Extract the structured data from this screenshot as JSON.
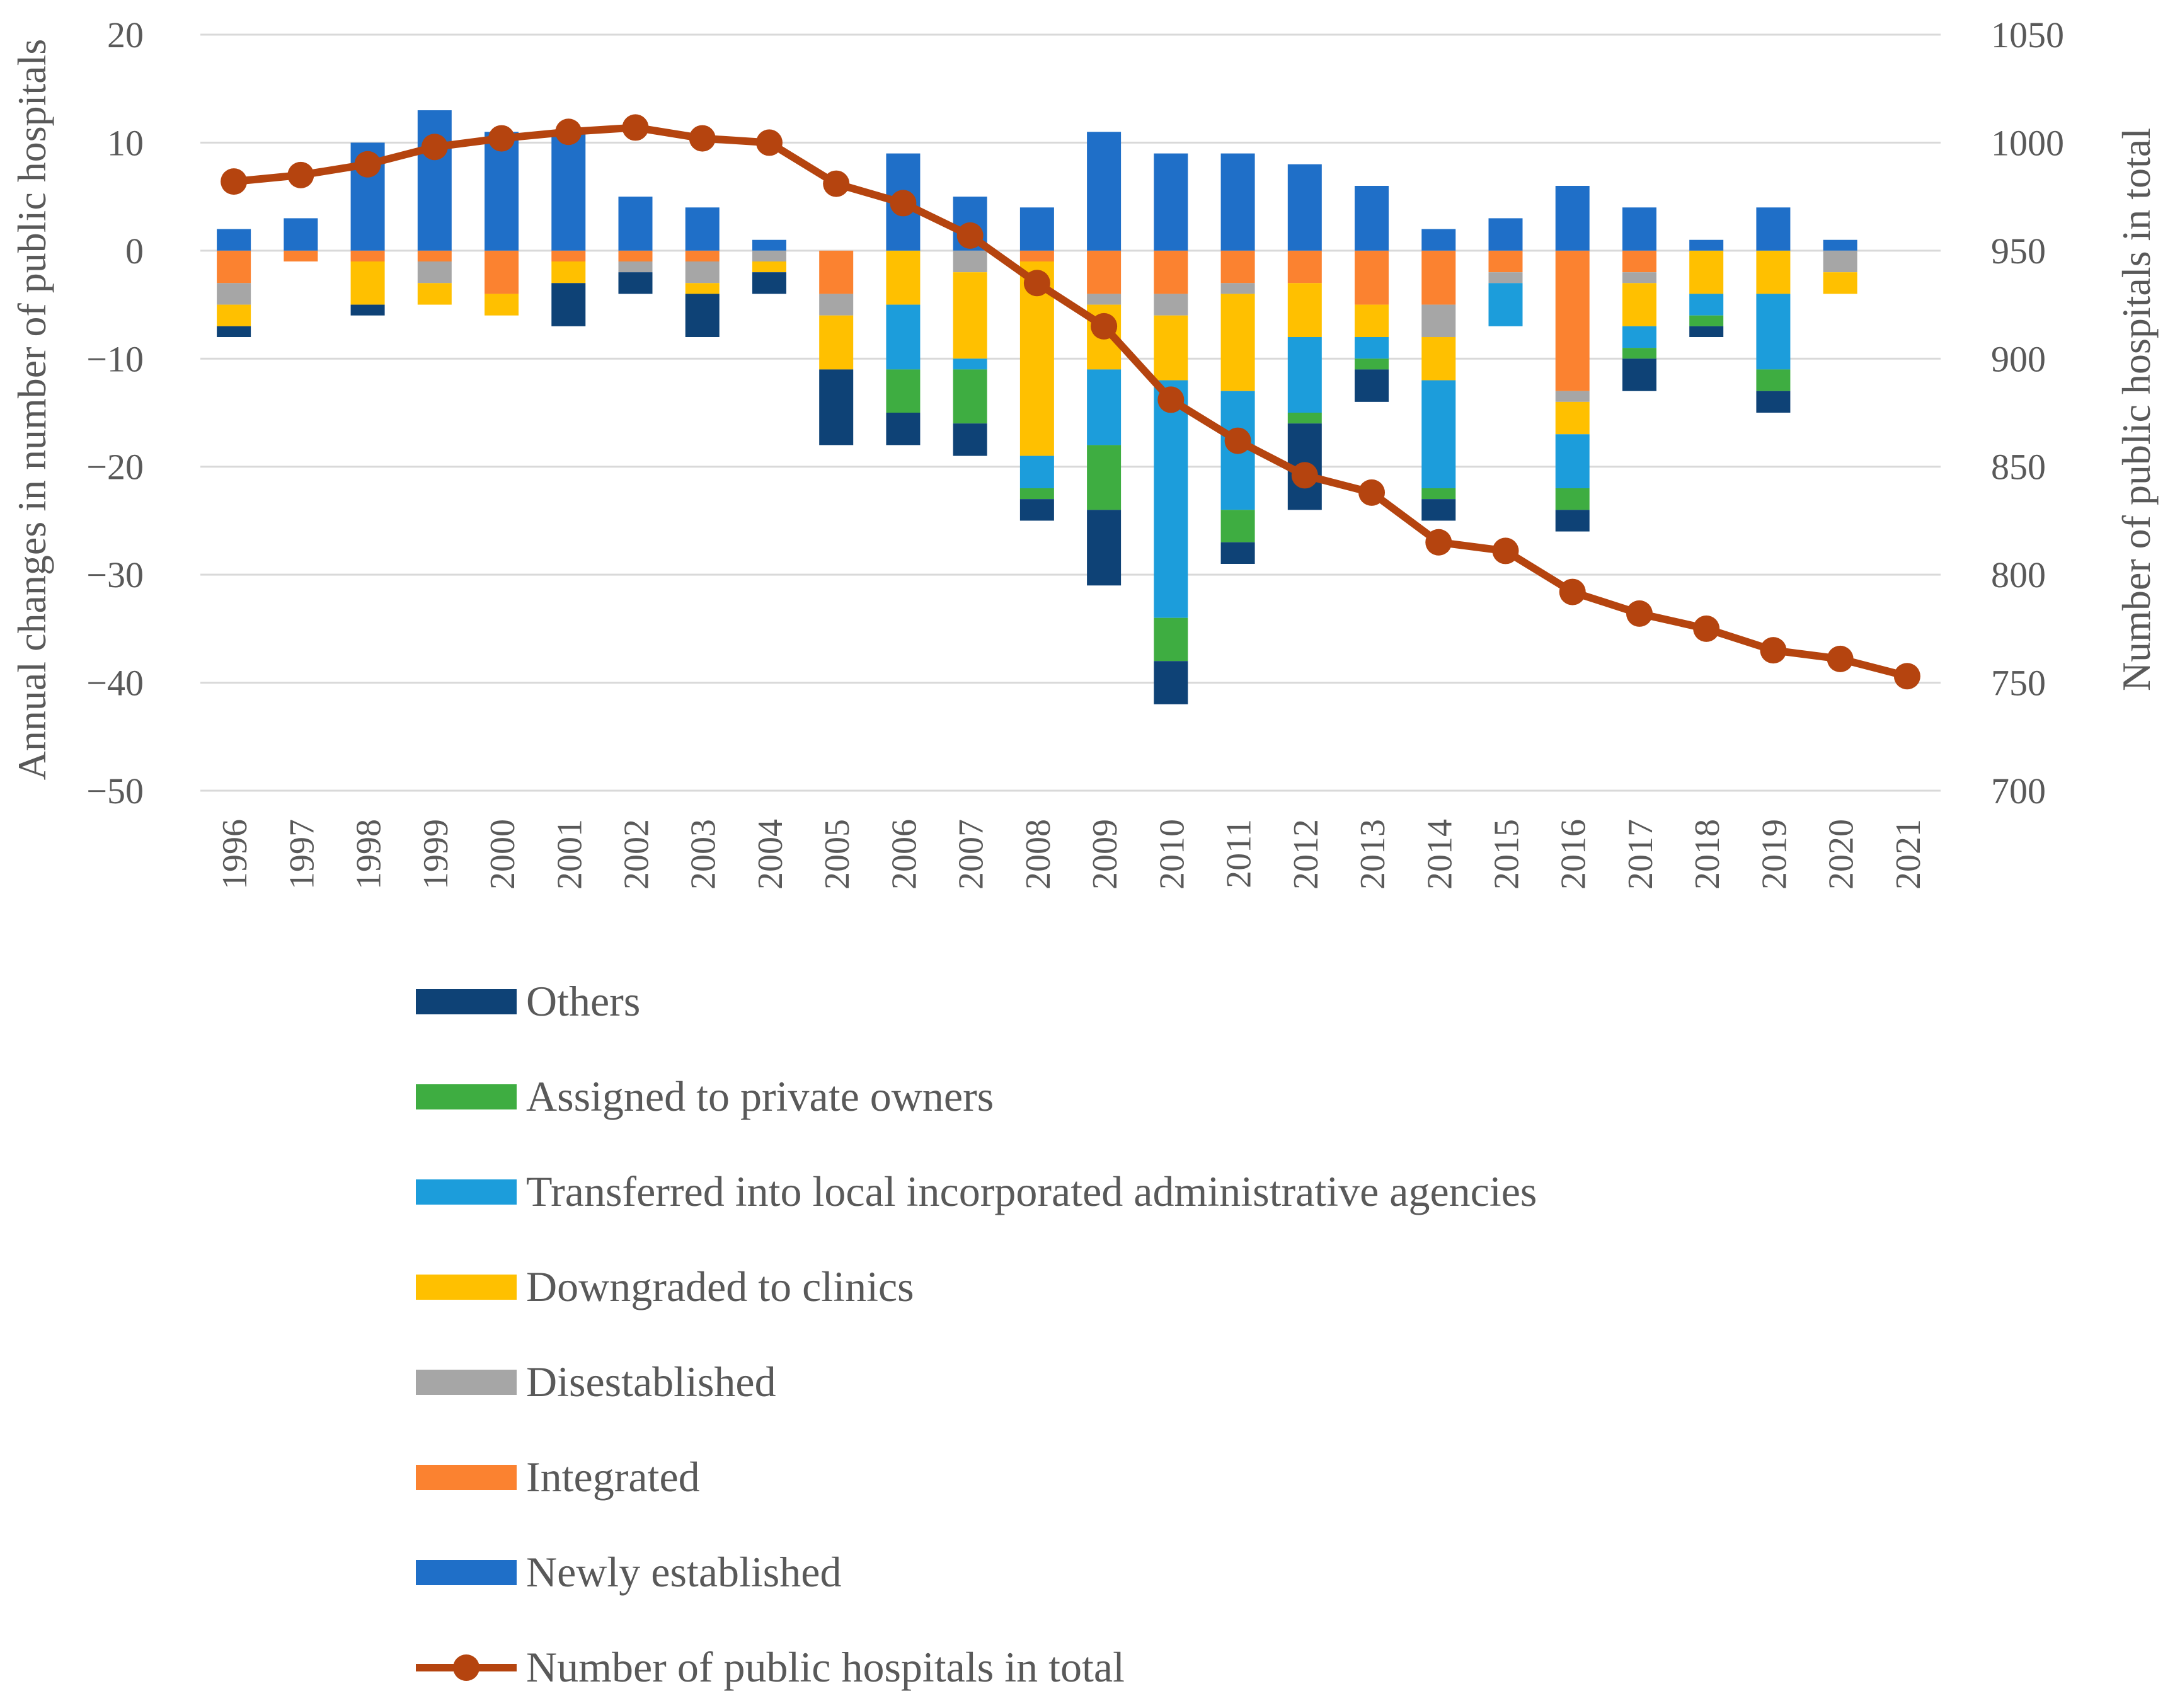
{
  "chart_data": {
    "type": "bar",
    "stacked": true,
    "categories": [
      "1996",
      "1997",
      "1998",
      "1999",
      "2000",
      "2001",
      "2002",
      "2003",
      "2004",
      "2005",
      "2006",
      "2007",
      "2008",
      "2009",
      "2010",
      "2011",
      "2012",
      "2013",
      "2014",
      "2015",
      "2016",
      "2017",
      "2018",
      "2019",
      "2020",
      "2021"
    ],
    "ylabel": "Annual changes in number of public hospitals",
    "y2label": "Number of public hospitals in total",
    "ylim": [
      -50,
      20
    ],
    "yticks": [
      20,
      10,
      0,
      -10,
      -20,
      -30,
      -40,
      -50
    ],
    "ytick_labels": [
      "20",
      "10",
      "0",
      "−10",
      "−20",
      "−30",
      "−40",
      "−50"
    ],
    "y2lim": [
      700,
      1050
    ],
    "y2ticks": [
      1050,
      1000,
      950,
      900,
      850,
      800,
      750,
      700
    ],
    "y2tick_labels": [
      "1050",
      "1000",
      "950",
      "900",
      "850",
      "800",
      "750",
      "700"
    ],
    "grid": true,
    "legend_position": "bottom",
    "legend_order": [
      "Others",
      "Assigned to private owners",
      "Transferred into local incorporated administrative agencies",
      "Downgraded to clinics",
      "Disestablished",
      "Integrated",
      "Newly established",
      "Number of public hospitals in total"
    ],
    "positive_series": {
      "name": "Newly established",
      "color": "#1f6fc8",
      "values": [
        2,
        3,
        10,
        13,
        11,
        11,
        5,
        4,
        1,
        0,
        9,
        5,
        4,
        11,
        9,
        9,
        8,
        6,
        2,
        3,
        6,
        4,
        1,
        4,
        1,
        0
      ]
    },
    "negative_series": [
      {
        "name": "Integrated",
        "color": "#fb8230",
        "values": [
          3,
          1,
          1,
          1,
          4,
          1,
          1,
          1,
          0,
          4,
          0,
          0,
          1,
          4,
          4,
          3,
          3,
          5,
          5,
          2,
          13,
          2,
          0,
          0,
          0,
          0
        ]
      },
      {
        "name": "Disestablished",
        "color": "#a6a6a6",
        "values": [
          2,
          0,
          0,
          2,
          0,
          0,
          1,
          2,
          1,
          2,
          0,
          2,
          0,
          1,
          2,
          1,
          0,
          0,
          3,
          1,
          1,
          1,
          0,
          0,
          2,
          0
        ]
      },
      {
        "name": "Downgraded to clinics",
        "color": "#ffc000",
        "values": [
          2,
          0,
          4,
          2,
          2,
          2,
          0,
          1,
          1,
          5,
          5,
          8,
          18,
          6,
          6,
          9,
          5,
          3,
          4,
          0,
          3,
          4,
          4,
          4,
          2,
          0
        ]
      },
      {
        "name": "Transferred into local incorporated administrative agencies",
        "color": "#1c9ddb",
        "values": [
          0,
          0,
          0,
          0,
          0,
          0,
          0,
          0,
          0,
          0,
          6,
          1,
          3,
          7,
          22,
          11,
          7,
          2,
          10,
          4,
          5,
          2,
          2,
          7,
          0,
          0
        ]
      },
      {
        "name": "Assigned to private owners",
        "color": "#3ead41",
        "values": [
          0,
          0,
          0,
          0,
          0,
          0,
          0,
          0,
          0,
          0,
          4,
          5,
          1,
          6,
          4,
          3,
          1,
          1,
          1,
          0,
          2,
          1,
          1,
          2,
          0,
          0
        ]
      },
      {
        "name": "Others",
        "color": "#0e4276",
        "values": [
          1,
          0,
          1,
          0,
          0,
          4,
          2,
          4,
          2,
          7,
          3,
          3,
          2,
          7,
          4,
          2,
          8,
          3,
          2,
          0,
          2,
          3,
          1,
          2,
          0,
          0
        ]
      }
    ],
    "line_series": {
      "name": "Number of public hospitals in total",
      "color": "#b5440f",
      "axis": "right",
      "values": [
        982,
        985,
        990,
        998,
        1002,
        1005,
        1007,
        1002,
        1000,
        981,
        972,
        957,
        935,
        915,
        881,
        862,
        846,
        838,
        815,
        811,
        792,
        782,
        775,
        765,
        761,
        753
      ]
    }
  }
}
